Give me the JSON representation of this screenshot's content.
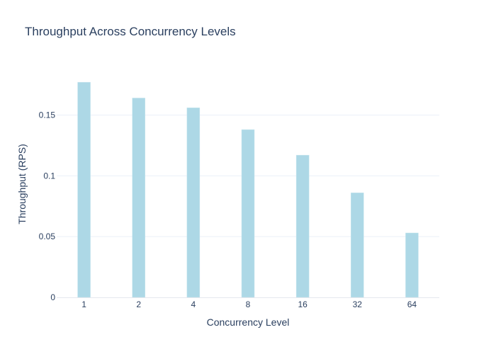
{
  "chart_data": {
    "type": "bar",
    "title": "Throughput Across Concurrency Levels",
    "xlabel": "Concurrency Level",
    "ylabel": "Throughput (RPS)",
    "categories": [
      "1",
      "2",
      "4",
      "8",
      "16",
      "32",
      "64"
    ],
    "values": [
      0.177,
      0.164,
      0.156,
      0.138,
      0.117,
      0.086,
      0.053
    ],
    "ylim": [
      0,
      0.1864
    ],
    "yticks": [
      0,
      0.05,
      0.1,
      0.15
    ],
    "ytick_labels": [
      "0",
      "0.05",
      "0.1",
      "0.15"
    ],
    "grid": true,
    "bar_color": "#add8e6",
    "bar_edge_color": "#c9e6ef",
    "grid_color": "#ebf0f8",
    "axis_line_color": "#e5e8ee"
  }
}
